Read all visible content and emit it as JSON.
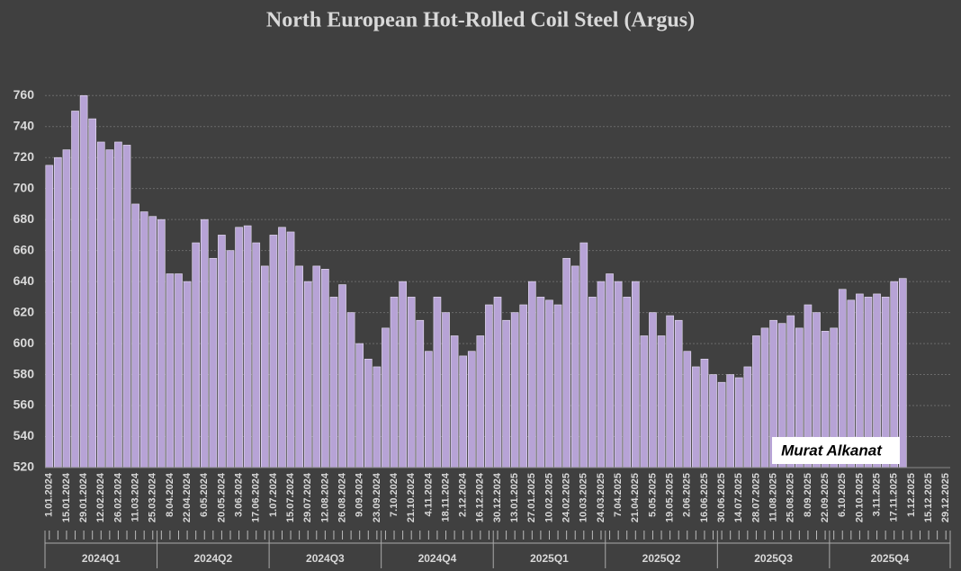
{
  "chart_data": {
    "type": "bar",
    "title": "North European Hot-Rolled Coil Steel (Argus)",
    "watermark": "Murat Alkanat",
    "categories": [
      "1.01.2024",
      null,
      "15.01.2024",
      null,
      "29.01.2024",
      null,
      "12.02.2024",
      null,
      "26.02.2024",
      null,
      "11.03.2024",
      null,
      "25.03.2024",
      null,
      "8.04.2024",
      null,
      "22.04.2024",
      null,
      "6.05.2024",
      null,
      "20.05.2024",
      null,
      "3.06.2024",
      null,
      "17.06.2024",
      null,
      "1.07.2024",
      null,
      "15.07.2024",
      null,
      "29.07.2024",
      null,
      "12.08.2024",
      null,
      "26.08.2024",
      null,
      "9.09.2024",
      null,
      "23.09.2024",
      null,
      "7.10.2024",
      null,
      "21.10.2024",
      null,
      "4.11.2024",
      null,
      "18.11.2024",
      null,
      "2.12.2024",
      null,
      "16.12.2024",
      null,
      "30.12.2024",
      null,
      "13.01.2025",
      null,
      "27.01.2025",
      null,
      "10.02.2025",
      null,
      "24.02.2025",
      null,
      "10.03.2025",
      null,
      "24.03.2025",
      null,
      "7.04.2025",
      null,
      "21.04.2025",
      null,
      "5.05.2025",
      null,
      "19.05.2025",
      null,
      "2.06.2025",
      null,
      "16.06.2025",
      null,
      "30.06.2025",
      null,
      "14.07.2025",
      null,
      "28.07.2025",
      null,
      "11.08.2025",
      null,
      "25.08.2025",
      null,
      "8.09.2025",
      null,
      "22.09.2025",
      null,
      "6.10.2025",
      null,
      "20.10.2025",
      null,
      "3.11.2025",
      null,
      "17.11.2025",
      null,
      "1.12.2025",
      null,
      "15.12.2025",
      null,
      "29.12.2025"
    ],
    "values": [
      715,
      720,
      725,
      750,
      760,
      745,
      730,
      725,
      730,
      728,
      690,
      685,
      682,
      680,
      645,
      645,
      640,
      665,
      680,
      655,
      670,
      660,
      675,
      676,
      665,
      650,
      670,
      675,
      672,
      650,
      640,
      650,
      648,
      630,
      638,
      620,
      600,
      590,
      585,
      610,
      630,
      640,
      630,
      615,
      595,
      630,
      620,
      605,
      592,
      595,
      605,
      625,
      630,
      615,
      620,
      625,
      640,
      630,
      628,
      625,
      655,
      650,
      665,
      630,
      640,
      645,
      640,
      630,
      640,
      605,
      620,
      605,
      618,
      615,
      595,
      585,
      590,
      580,
      575,
      580,
      578,
      585,
      605,
      610,
      615,
      613,
      618,
      610,
      625,
      620,
      608,
      610,
      635,
      628,
      632,
      630,
      632,
      630,
      640,
      642,
      null,
      null,
      null,
      null,
      null
    ],
    "color": "#b7a3d6",
    "quarters": [
      "2024Q1",
      "2024Q2",
      "2024Q3",
      "2024Q4",
      "2025Q1",
      "2025Q2",
      "2025Q3",
      "2025Q4"
    ],
    "ylim": [
      520,
      770
    ],
    "yticks": [
      520,
      540,
      560,
      580,
      600,
      620,
      640,
      660,
      680,
      700,
      720,
      740,
      760
    ],
    "grid": true
  }
}
